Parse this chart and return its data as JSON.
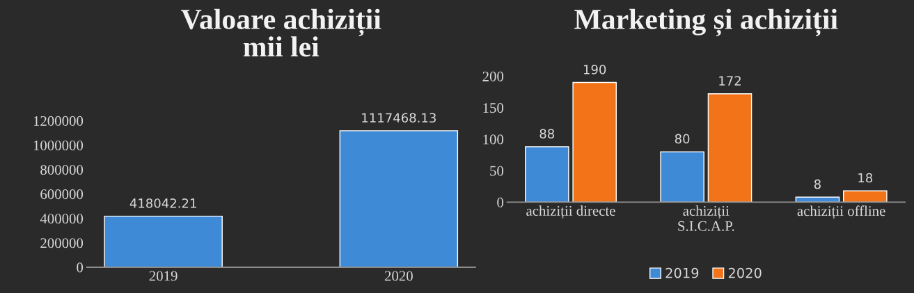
{
  "chart_data": [
    {
      "type": "bar",
      "title": "Valoare achiziții\nmii lei",
      "categories": [
        "2019",
        "2020"
      ],
      "series": [
        {
          "color": "#3e8ad6",
          "values": [
            418042.21,
            1117468.13
          ]
        }
      ],
      "ylim": [
        0,
        1200000
      ],
      "yticks": [
        0,
        200000,
        400000,
        600000,
        800000,
        1000000,
        1200000
      ],
      "data_labels": true,
      "grid": false,
      "legend": false
    },
    {
      "type": "bar",
      "title": "Marketing și achiziții",
      "categories": [
        "achiziții directe",
        "achiziții\nS.I.C.A.P.",
        "achiziții offline"
      ],
      "series": [
        {
          "name": "2019",
          "color": "#3e8ad6",
          "values": [
            88,
            80,
            8
          ]
        },
        {
          "name": "2020",
          "color": "#f27318",
          "values": [
            190,
            172,
            18
          ]
        }
      ],
      "ylim": [
        0,
        200
      ],
      "yticks": [
        0,
        50,
        100,
        150,
        200
      ],
      "data_labels": true,
      "grid": false,
      "legend": "bottom"
    }
  ]
}
